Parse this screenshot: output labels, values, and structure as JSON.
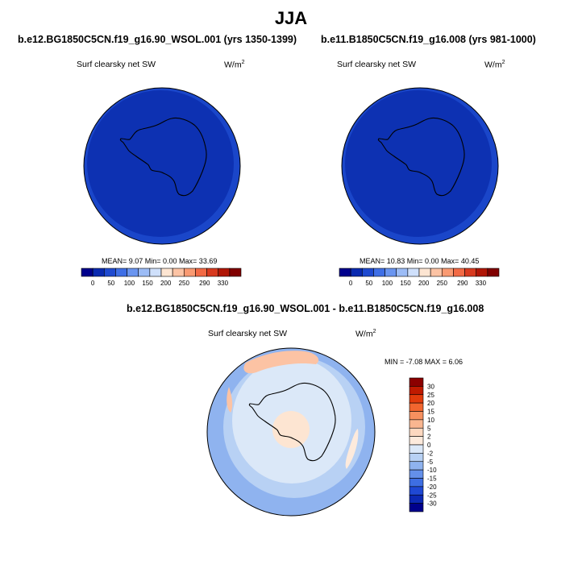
{
  "title": "JJA",
  "chart_data": [
    {
      "type": "heatmap",
      "title": "b.e12.BG1850C5CN.f19_g16.90_WSOL.001 (yrs 1350-1399)",
      "subtitle": "Surf clearsky net SW",
      "units": "W/m2",
      "projection": "south polar stereographic",
      "stats": {
        "mean": "9.07",
        "min": "0.00",
        "max": "33.69"
      },
      "stats_text": "MEAN=  9.07  Min=  0.00  Max=  33.69",
      "colorbar_levels": [
        0,
        50,
        100,
        150,
        200,
        250,
        290,
        330
      ],
      "colorbar_tick_labels": [
        "0",
        "50",
        "100",
        "150",
        "200",
        "250",
        "290",
        "330"
      ],
      "colorbar_colors": [
        "#00008c",
        "#0a2ab0",
        "#1f4ad0",
        "#3f6fe6",
        "#6a95f0",
        "#9cbcf6",
        "#cfe0fb",
        "#fde5d2",
        "#fcc3a4",
        "#f99a72",
        "#f26a45",
        "#d83a1f",
        "#b01606",
        "#800000"
      ],
      "dominant_fill": "#0d31b2",
      "outer_ring_fill": "#1a46c9"
    },
    {
      "type": "heatmap",
      "title": "b.e11.B1850C5CN.f19_g16.008 (yrs 981-1000)",
      "subtitle": "Surf clearsky net SW",
      "units": "W/m2",
      "projection": "south polar stereographic",
      "stats": {
        "mean": "10.83",
        "min": "0.00",
        "max": "40.45"
      },
      "stats_text": "MEAN=  10.83  Min=  0.00  Max=  40.45",
      "colorbar_levels": [
        0,
        50,
        100,
        150,
        200,
        250,
        290,
        330
      ],
      "colorbar_tick_labels": [
        "0",
        "50",
        "100",
        "150",
        "200",
        "250",
        "290",
        "330"
      ],
      "colorbar_colors": [
        "#00008c",
        "#0a2ab0",
        "#1f4ad0",
        "#3f6fe6",
        "#6a95f0",
        "#9cbcf6",
        "#cfe0fb",
        "#fde5d2",
        "#fcc3a4",
        "#f99a72",
        "#f26a45",
        "#d83a1f",
        "#b01606",
        "#800000"
      ],
      "dominant_fill": "#0d31b2",
      "outer_ring_fill": "#1a46c9"
    },
    {
      "type": "heatmap",
      "title": "b.e12.BG1850C5CN.f19_g16.90_WSOL.001 - b.e11.B1850C5CN.f19_g16.008",
      "subtitle": "Surf clearsky net SW",
      "units": "W/m2",
      "projection": "south polar stereographic",
      "stats": {
        "min": "-7.08",
        "max": "6.06"
      },
      "stats_text": "MIN =  -7.08 MAX =   6.06",
      "colorbar_levels": [
        -30,
        -25,
        -20,
        -15,
        -10,
        -5,
        -2,
        0,
        2,
        5,
        10,
        15,
        20,
        25,
        30
      ],
      "colorbar_tick_labels": [
        "30",
        "25",
        "20",
        "15",
        "10",
        "5",
        "2",
        "0",
        "-2",
        "-5",
        "-10",
        "-15",
        "-20",
        "-25",
        "-30"
      ],
      "colorbar_colors": [
        "#8b0000",
        "#c01a00",
        "#e23b0c",
        "#f2662f",
        "#f6905f",
        "#f9b690",
        "#fdd8c0",
        "#fdeadc",
        "#dbe8f8",
        "#b8d1f4",
        "#8fb3ef",
        "#6490ea",
        "#3e6ee2",
        "#1f48d4",
        "#0c28b4",
        "#00008c"
      ],
      "field_levels": {
        "background": 0,
        "outer_ring": -5,
        "mid_ring": -2,
        "polar_cap": 2
      }
    }
  ]
}
